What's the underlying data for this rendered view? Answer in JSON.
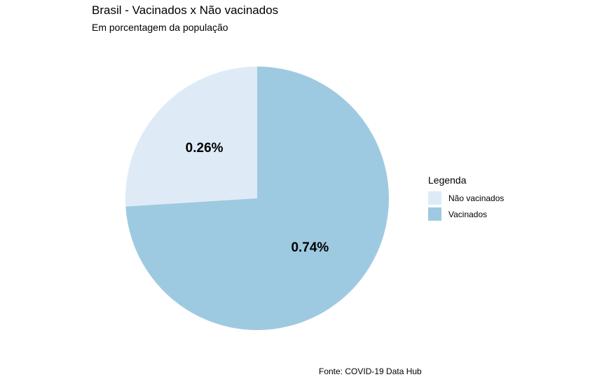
{
  "chart_data": {
    "type": "pie",
    "title": "Brasil - Vacinados x Não vacinados",
    "subtitle": "Em porcentagem da população",
    "caption": "Fonte: COVID-19 Data Hub",
    "legend": {
      "title": "Legenda",
      "position": "right"
    },
    "slices": [
      {
        "name": "Não vacinados",
        "value": 0.26,
        "label": "0.26%",
        "color": "#deebf7"
      },
      {
        "name": "Vacinados",
        "value": 0.74,
        "label": "0.74%",
        "color": "#9ecae1"
      }
    ],
    "start": "top",
    "direction": "counterclockwise"
  }
}
